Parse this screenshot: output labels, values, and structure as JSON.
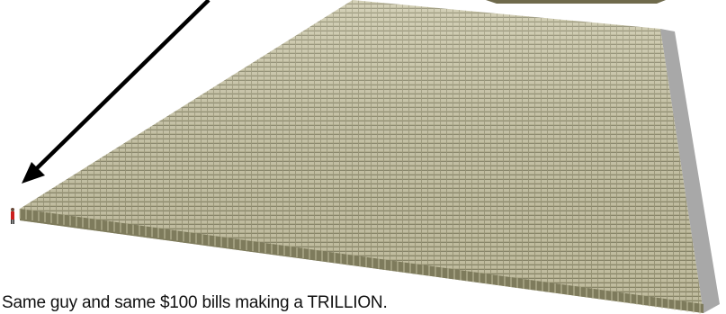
{
  "caption": "Same guy and same $100 bills making a TRILLION.",
  "colors": {
    "money_light": "#c6c3a4",
    "money_mid": "#a9a683",
    "money_dark": "#7e7b5c",
    "shadow_side": "#a8a8a8",
    "arrow": "#000000",
    "person": "#cc1f1f"
  },
  "icons": [
    "arrow-icon",
    "person-icon"
  ]
}
